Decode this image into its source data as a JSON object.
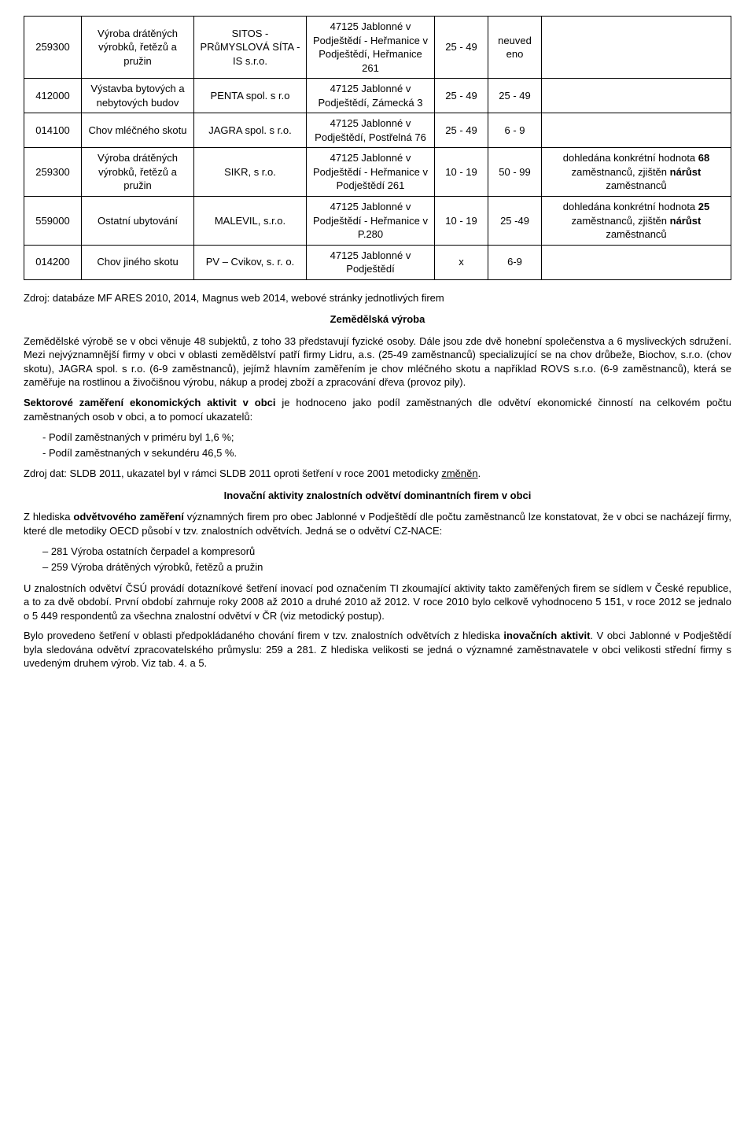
{
  "table": {
    "rows": [
      {
        "code": "259300",
        "activity": "Výroba drátěných výrobků, řetězů a pružin",
        "company": "SITOS - PRůMYSLOVÁ SÍTA - IS s.r.o.",
        "address": "47125 Jablonné v Podještědí - Heřmanice v Podještědí, Heřmanice 261",
        "r1": "25 - 49",
        "r2": "neuved eno",
        "note": ""
      },
      {
        "code": "412000",
        "activity": "Výstavba bytových a nebytových budov",
        "company": "PENTA spol. s r.o",
        "address": "47125 Jablonné v Podještědí, Zámecká 3",
        "r1": "25 - 49",
        "r2": "25 - 49",
        "note": ""
      },
      {
        "code": "014100",
        "activity": "Chov mléčného skotu",
        "company": "JAGRA spol. s r.o.",
        "address": "47125 Jablonné v Podještědí, Postřelná 76",
        "r1": "25 - 49",
        "r2": "6 - 9",
        "note": ""
      },
      {
        "code": "259300",
        "activity": "Výroba drátěných výrobků, řetězů a pružin",
        "company": "SIKR, s r.o.",
        "address": "47125 Jablonné v Podještědí - Heřmanice v Podještědí 261",
        "r1": "10 - 19",
        "r2": "50 - 99",
        "note": "dohledána konkrétní hodnota 68 zaměstnanců, zjištěn nárůst zaměstnanců",
        "note_bold": [
          "68",
          "nárůst"
        ]
      },
      {
        "code": "559000",
        "activity": "Ostatní ubytování",
        "company": "MALEVIL, s.r.o.",
        "address": "47125 Jablonné v Podještědí - Heřmanice v P.280",
        "r1": "10 - 19",
        "r2": "25 -49",
        "note": "dohledána konkrétní hodnota 25 zaměstnanců, zjištěn nárůst zaměstnanců",
        "note_bold": [
          "25",
          "nárůst"
        ]
      },
      {
        "code": "014200",
        "activity": "Chov jiného skotu",
        "company": "PV – Cvikov, s. r. o.",
        "address": "47125 Jablonné v Podještědí",
        "r1": "x",
        "r2": "6-9",
        "note": ""
      }
    ]
  },
  "source": "Zdroj: databáze MF ARES 2010, 2014, Magnus web 2014, webové stránky jednotlivých firem",
  "heading_agri": "Zemědělská výroba",
  "para_agri": "Zemědělské výrobě se v obci věnuje 48 subjektů, z toho 33 představují fyzické osoby. Dále jsou zde dvě honební společenstva a 6 mysliveckých sdružení. Mezi nejvýznamnější firmy v obci v oblasti zemědělství patří firmy Lidru, a.s. (25-49 zaměstnanců) specializující se na chov drůbeže, Biochov, s.r.o. (chov skotu), JAGRA spol. s r.o. (6-9 zaměstnanců), jejímž hlavním zaměřením je chov mléčného skotu a například ROVS s.r.o. (6-9 zaměstnanců), která se zaměřuje na rostlinou a živočišnou výrobu, nákup a prodej zboží a zpracování dřeva (provoz pily).",
  "para_sector_lead": "Sektorové zaměření ekonomických aktivit v obci",
  "para_sector_rest": " je hodnoceno jako podíl zaměstnaných dle odvětví ekonomické činností na celkovém počtu zaměstnaných osob v obci, a to pomocí ukazatelů:",
  "bullets_sector": [
    "Podíl zaměstnaných v priméru byl 1,6 %;",
    "Podíl zaměstnaných v sekundéru 46,5 %."
  ],
  "sector_src_pre": "Zdroj dat: SLDB 2011, ukazatel byl v rámci SLDB 2011 oproti šetření v roce 2001 metodicky ",
  "sector_src_under": "změněn",
  "sector_src_post": ".",
  "heading_innov": "Inovační aktivity znalostních odvětví dominantních firem v obci",
  "para_innov1_pre": "Z hlediska ",
  "para_innov1_bold": "odvětvového zaměření",
  "para_innov1_rest": " významných firem pro obec Jablonné v Podještědí dle počtu zaměstnanců lze konstatovat, že v obci se nacházejí firmy, které dle metodiky OECD působí v tzv. znalostních odvětvích. Jedná se o odvětví CZ-NACE:",
  "bullets_nace": [
    "281       Výroba ostatních čerpadel a kompresorů",
    "259       Výroba drátěných výrobků, řetězů a pružin"
  ],
  "para_innov2": "U znalostních odvětví ČSÚ provádí dotazníkové šetření inovací pod označením TI zkoumající aktivity takto zaměřených firem se sídlem v České republice, a to za dvě období. První období zahrnuje roky 2008 až 2010 a druhé 2010 až 2012. V roce 2010 bylo celkově vyhodnoceno 5 151, v roce 2012 se jednalo o 5 449 respondentů za všechna znalostní odvětví v ČR (viz metodický postup).",
  "para_innov3_pre": "Bylo provedeno šetření v oblasti předpokládaného chování firem v tzv. znalostních odvětvích z hlediska ",
  "para_innov3_bold": "inovačních aktivit",
  "para_innov3_rest": ". V obci Jablonné v Podještědí byla sledována odvětví zpracovatelského průmyslu: 259 a 281. Z hlediska velikosti se jedná o významné zaměstnavatele v obci velikosti střední firmy s uvedeným druhem výrob. Viz tab. 4. a 5."
}
